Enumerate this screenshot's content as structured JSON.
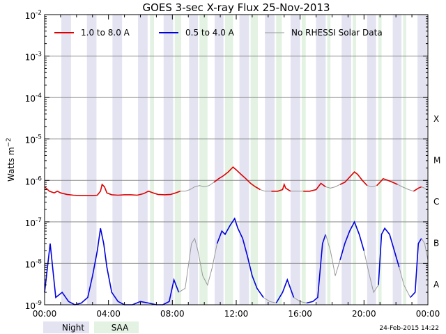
{
  "chart_data": {
    "type": "line",
    "title": "GOES 3-sec X-ray Flux   25-Nov-2013",
    "xlabel": "",
    "ylabel": "Watts m",
    "ylabel_sup": "−2",
    "x_unit": "hours UT",
    "xlim": [
      0,
      24
    ],
    "ylim": [
      1e-09,
      0.01
    ],
    "y_scale": "log",
    "grid": "horizontal at each decade",
    "x_ticks": [
      {
        "x": 0,
        "label": "00:00"
      },
      {
        "x": 4,
        "label": "04:00"
      },
      {
        "x": 8,
        "label": "08:00"
      },
      {
        "x": 12,
        "label": "12:00"
      },
      {
        "x": 16,
        "label": "16:00"
      },
      {
        "x": 20,
        "label": "20:00"
      },
      {
        "x": 24,
        "label": "00:00"
      }
    ],
    "y_ticks": [
      {
        "exp": -2,
        "label_base": "10",
        "label_exp": "-2"
      },
      {
        "exp": -3,
        "label_base": "10",
        "label_exp": "-3"
      },
      {
        "exp": -4,
        "label_base": "10",
        "label_exp": "-4"
      },
      {
        "exp": -5,
        "label_base": "10",
        "label_exp": "-5"
      },
      {
        "exp": -6,
        "label_base": "10",
        "label_exp": "-6"
      },
      {
        "exp": -7,
        "label_base": "10",
        "label_exp": "-7"
      },
      {
        "exp": -8,
        "label_base": "10",
        "label_exp": "-8"
      },
      {
        "exp": -9,
        "label_base": "10",
        "label_exp": "-9"
      }
    ],
    "flare_classes": [
      {
        "exp": -4,
        "label": "X"
      },
      {
        "exp": -5,
        "label": "M"
      },
      {
        "exp": -6,
        "label": "C"
      },
      {
        "exp": -7,
        "label": "B"
      },
      {
        "exp": -8,
        "label": "A"
      }
    ],
    "legend_placement": "top, inside plot",
    "series": [
      {
        "name": "1.0 to 8.0 A",
        "color": "#dd0000",
        "gap_color": "#999999",
        "points": [
          [
            0.0,
            7e-07
          ],
          [
            0.3,
            5.5e-07
          ],
          [
            0.6,
            5e-07
          ],
          [
            0.8,
            5.5e-07
          ],
          [
            1.0,
            5e-07
          ],
          [
            1.4,
            4.6e-07
          ],
          [
            1.8,
            4.4e-07
          ],
          [
            2.2,
            4.3e-07
          ],
          [
            2.6,
            4.3e-07
          ],
          [
            3.0,
            4.3e-07
          ],
          [
            3.3,
            4.4e-07
          ],
          [
            3.5,
            5.5e-07
          ],
          [
            3.6,
            8e-07
          ],
          [
            3.75,
            7e-07
          ],
          [
            3.9,
            5e-07
          ],
          [
            4.2,
            4.5e-07
          ],
          [
            4.6,
            4.4e-07
          ],
          [
            5.0,
            4.5e-07
          ],
          [
            5.4,
            4.5e-07
          ],
          [
            5.8,
            4.4e-07
          ],
          [
            6.2,
            4.8e-07
          ],
          [
            6.5,
            5.5e-07
          ],
          [
            6.8,
            5e-07
          ],
          [
            7.1,
            4.6e-07
          ],
          [
            7.5,
            4.5e-07
          ],
          [
            7.9,
            4.6e-07
          ],
          [
            8.2,
            5e-07
          ],
          [
            8.5,
            5.5e-07
          ],
          [
            8.8,
            5.5e-07
          ],
          [
            9.1,
            6e-07
          ],
          [
            9.4,
            7e-07
          ],
          [
            9.7,
            7.5e-07
          ],
          [
            10.0,
            7e-07
          ],
          [
            10.3,
            7.5e-07
          ],
          [
            10.6,
            9e-07
          ],
          [
            10.9,
            1.1e-06
          ],
          [
            11.2,
            1.3e-06
          ],
          [
            11.5,
            1.6e-06
          ],
          [
            11.8,
            2.1e-06
          ],
          [
            12.0,
            1.8e-06
          ],
          [
            12.3,
            1.4e-06
          ],
          [
            12.6,
            1.1e-06
          ],
          [
            12.9,
            8.5e-07
          ],
          [
            13.2,
            7e-07
          ],
          [
            13.5,
            6e-07
          ],
          [
            13.8,
            5.5e-07
          ],
          [
            14.2,
            5.5e-07
          ],
          [
            14.6,
            5.5e-07
          ],
          [
            14.9,
            6e-07
          ],
          [
            15.0,
            8e-07
          ],
          [
            15.1,
            6.5e-07
          ],
          [
            15.4,
            5.5e-07
          ],
          [
            15.8,
            5.5e-07
          ],
          [
            16.2,
            5.5e-07
          ],
          [
            16.6,
            5.5e-07
          ],
          [
            17.0,
            6e-07
          ],
          [
            17.3,
            8.5e-07
          ],
          [
            17.6,
            7e-07
          ],
          [
            17.9,
            6.5e-07
          ],
          [
            18.2,
            7e-07
          ],
          [
            18.5,
            8e-07
          ],
          [
            18.8,
            9e-07
          ],
          [
            19.1,
            1.2e-06
          ],
          [
            19.4,
            1.6e-06
          ],
          [
            19.6,
            1.4e-06
          ],
          [
            19.9,
            1e-06
          ],
          [
            20.2,
            7.5e-07
          ],
          [
            20.5,
            7e-07
          ],
          [
            20.8,
            7.5e-07
          ],
          [
            21.0,
            9e-07
          ],
          [
            21.2,
            1.1e-06
          ],
          [
            21.5,
            1e-06
          ],
          [
            21.8,
            9e-07
          ],
          [
            22.1,
            8e-07
          ],
          [
            22.4,
            7e-07
          ],
          [
            22.8,
            6e-07
          ],
          [
            23.1,
            5.5e-07
          ],
          [
            23.4,
            6.5e-07
          ],
          [
            23.6,
            7e-07
          ],
          [
            23.8,
            6.5e-07
          ],
          [
            24.0,
            6e-07
          ]
        ],
        "gaps": [
          [
            8.3,
            10.5
          ],
          [
            13.4,
            14.1
          ],
          [
            15.3,
            16.1
          ],
          [
            17.6,
            18.3
          ],
          [
            20.0,
            20.7
          ],
          [
            22.0,
            22.8
          ],
          [
            23.6,
            24.0
          ]
        ]
      },
      {
        "name": "0.5 to 4.0 A",
        "color": "#0000dd",
        "gap_color": "#999999",
        "points": [
          [
            0.0,
            2e-09
          ],
          [
            0.35,
            3e-08
          ],
          [
            0.7,
            1.5e-09
          ],
          [
            1.1,
            2e-09
          ],
          [
            1.5,
            1.2e-09
          ],
          [
            1.9,
            1e-09
          ],
          [
            2.3,
            1.1e-09
          ],
          [
            2.7,
            1.5e-09
          ],
          [
            3.0,
            5e-09
          ],
          [
            3.3,
            2e-08
          ],
          [
            3.5,
            7e-08
          ],
          [
            3.7,
            3e-08
          ],
          [
            3.9,
            8e-09
          ],
          [
            4.2,
            2e-09
          ],
          [
            4.6,
            1.2e-09
          ],
          [
            5.0,
            1e-09
          ],
          [
            5.5,
            1e-09
          ],
          [
            6.0,
            1.2e-09
          ],
          [
            6.5,
            1.1e-09
          ],
          [
            7.0,
            1e-09
          ],
          [
            7.4,
            1e-09
          ],
          [
            7.8,
            1.2e-09
          ],
          [
            8.1,
            4e-09
          ],
          [
            8.4,
            2e-09
          ],
          [
            8.8,
            2.5e-09
          ],
          [
            9.2,
            3e-08
          ],
          [
            9.4,
            4e-08
          ],
          [
            9.6,
            2e-08
          ],
          [
            9.9,
            5e-09
          ],
          [
            10.2,
            3e-09
          ],
          [
            10.5,
            8e-09
          ],
          [
            10.8,
            3e-08
          ],
          [
            11.1,
            6e-08
          ],
          [
            11.3,
            5e-08
          ],
          [
            11.6,
            8e-08
          ],
          [
            11.9,
            1.2e-07
          ],
          [
            12.1,
            7e-08
          ],
          [
            12.4,
            4e-08
          ],
          [
            12.7,
            1.5e-08
          ],
          [
            13.0,
            5e-09
          ],
          [
            13.3,
            2.5e-09
          ],
          [
            13.7,
            1.5e-09
          ],
          [
            14.1,
            1.2e-09
          ],
          [
            14.5,
            1.1e-09
          ],
          [
            14.9,
            2e-09
          ],
          [
            15.2,
            4e-09
          ],
          [
            15.6,
            1.5e-09
          ],
          [
            16.0,
            1.2e-09
          ],
          [
            16.4,
            1.1e-09
          ],
          [
            16.8,
            1.2e-09
          ],
          [
            17.1,
            1.5e-09
          ],
          [
            17.4,
            3e-08
          ],
          [
            17.6,
            5e-08
          ],
          [
            17.9,
            2e-08
          ],
          [
            18.2,
            5e-09
          ],
          [
            18.5,
            1.2e-08
          ],
          [
            18.8,
            3e-08
          ],
          [
            19.1,
            6e-08
          ],
          [
            19.4,
            1e-07
          ],
          [
            19.7,
            5e-08
          ],
          [
            20.0,
            2e-08
          ],
          [
            20.3,
            6e-09
          ],
          [
            20.6,
            2e-09
          ],
          [
            20.9,
            3e-09
          ],
          [
            21.1,
            5e-08
          ],
          [
            21.3,
            7e-08
          ],
          [
            21.6,
            5e-08
          ],
          [
            21.9,
            2e-08
          ],
          [
            22.2,
            8e-09
          ],
          [
            22.5,
            3e-09
          ],
          [
            22.9,
            1.5e-09
          ],
          [
            23.2,
            2e-09
          ],
          [
            23.4,
            3e-08
          ],
          [
            23.6,
            4e-08
          ],
          [
            23.8,
            3e-08
          ],
          [
            24.0,
            1.2e-08
          ]
        ],
        "gaps": [
          [
            8.3,
            10.5
          ],
          [
            13.4,
            14.1
          ],
          [
            15.3,
            16.1
          ],
          [
            17.6,
            18.3
          ],
          [
            20.0,
            20.7
          ],
          [
            22.0,
            22.8
          ],
          [
            23.6,
            24.0
          ]
        ]
      },
      {
        "name": "No RHESSI Solar Data",
        "color": "#999999",
        "legend_only": true
      }
    ],
    "bands": {
      "night_label": "Night",
      "saa_label": "SAA",
      "night_color": "#e3e3f2",
      "saa_color": "#e3f2e3",
      "night": [
        [
          1.05,
          1.65
        ],
        [
          2.65,
          3.25
        ],
        [
          4.25,
          4.85
        ],
        [
          5.85,
          6.45
        ],
        [
          7.45,
          8.05
        ],
        [
          9.05,
          9.6
        ],
        [
          10.65,
          11.2
        ],
        [
          12.2,
          12.8
        ],
        [
          13.8,
          14.4
        ],
        [
          15.4,
          16.0
        ],
        [
          17.0,
          17.6
        ],
        [
          18.6,
          19.2
        ],
        [
          20.2,
          20.75
        ],
        [
          21.8,
          22.35
        ],
        [
          23.35,
          23.95
        ]
      ],
      "saa": [
        [
          6.6,
          6.85
        ],
        [
          8.15,
          8.55
        ],
        [
          9.7,
          10.2
        ],
        [
          11.3,
          11.8
        ],
        [
          12.9,
          13.35
        ],
        [
          14.5,
          14.85
        ],
        [
          16.1,
          16.35
        ],
        [
          17.7,
          17.9
        ],
        [
          19.3,
          19.5
        ],
        [
          20.9,
          21.1
        ],
        [
          22.45,
          22.65
        ]
      ]
    }
  },
  "footer": {
    "timestamp": "24-Feb-2015 14:22"
  }
}
